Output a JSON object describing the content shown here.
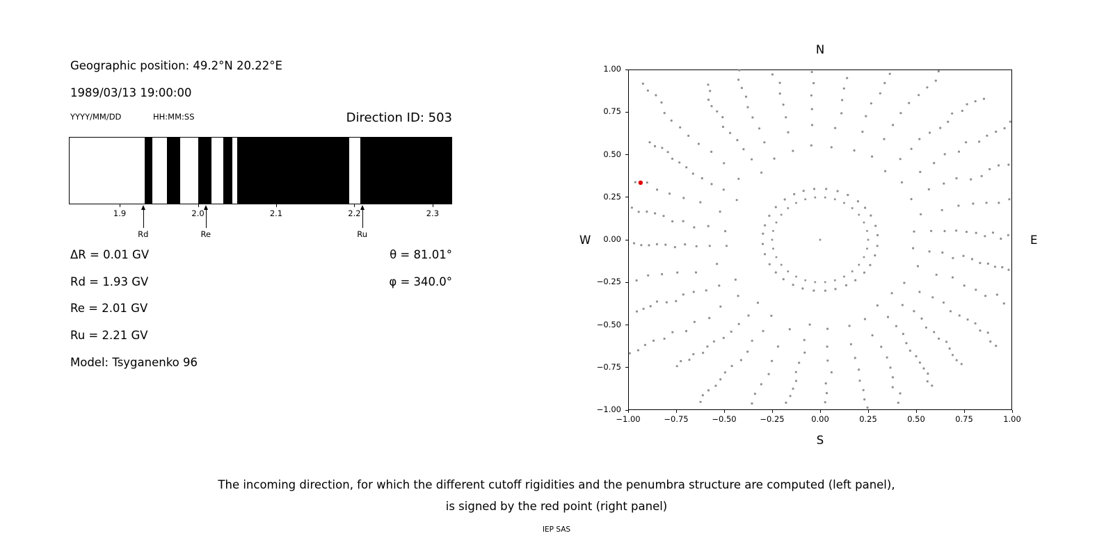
{
  "page": {
    "background": "#ffffff",
    "caption_line1": "The incoming direction, for which the different cutoff rigidities and the penumbra structure are computed (left panel),",
    "caption_line2": "is signed by the red point (right panel)",
    "credit": "IEP SAS"
  },
  "info_panel": {
    "geographic_position": "Geographic position: 49.2°N 20.22°E",
    "datetime": "1989/03/13 19:00:00",
    "date_format_label": "YYYY/MM/DD",
    "time_format_label": "HH:MM:SS",
    "direction_id": "Direction ID: 503",
    "stats": [
      "ΔR = 0.01 GV",
      "Rd = 1.93 GV",
      "Re = 2.01 GV",
      "Ru = 2.21 GV",
      "Model: Tsyganenko 96"
    ],
    "theta": "θ = 81.01°",
    "phi": "φ = 340.0°"
  },
  "chart_data": [
    {
      "id": "penumbra",
      "type": "bar",
      "title": "",
      "description": "Penumbra structure barcode: black bands are allowed rigidity intervals in GV",
      "xlabel": "",
      "xlim": [
        1.835,
        2.325
      ],
      "xtick_values": [
        1.9,
        2.0,
        2.1,
        2.2,
        2.3
      ],
      "xtick_labels": [
        "1.9",
        "2.0",
        "2.1",
        "2.2",
        "2.3"
      ],
      "band_color": "#000000",
      "bands_gv": [
        [
          1.931,
          1.941
        ],
        [
          1.96,
          1.977
        ],
        [
          2.0,
          2.017
        ],
        [
          2.032,
          2.044
        ],
        [
          2.05,
          2.194
        ],
        [
          2.208,
          2.325
        ]
      ],
      "markers": [
        {
          "label": "Rd",
          "value_gv": 1.93
        },
        {
          "label": "Re",
          "value_gv": 2.01
        },
        {
          "label": "Ru",
          "value_gv": 2.21
        }
      ]
    },
    {
      "id": "asymptotic-directions",
      "type": "scatter",
      "title": "",
      "description": "Asymptotic directions map; gray radial spokes of dots, red point marks the incoming direction",
      "xlim": [
        -1,
        1
      ],
      "ylim": [
        -1,
        1
      ],
      "xtick_values": [
        -1,
        -0.75,
        -0.5,
        -0.25,
        0,
        0.25,
        0.5,
        0.75,
        1
      ],
      "xtick_labels": [
        "−1.00",
        "−0.75",
        "−0.50",
        "−0.25",
        "0.00",
        "0.25",
        "0.50",
        "0.75",
        "1.00"
      ],
      "ytick_values": [
        1,
        0.75,
        0.5,
        0.25,
        0,
        -0.25,
        -0.5,
        -0.75,
        -1
      ],
      "ytick_labels": [
        "1.00",
        "0.75",
        "0.50",
        "0.25",
        "0.00",
        "−0.25",
        "−0.50",
        "−0.75",
        "−1.00"
      ],
      "compass": {
        "top": "N",
        "bottom": "S",
        "left": "W",
        "right": "E"
      },
      "grid": false,
      "dot_color": "#8f8f8f",
      "dot_radius": 1.6,
      "red_point": {
        "x": -0.935,
        "y": 0.335,
        "color": "#e00000",
        "radius": 3.2
      },
      "spokes": {
        "count": 32,
        "r_min": 0.3,
        "r_max_base": 1.02,
        "r_max_spread": 0.3,
        "dots_per_spoke": 13,
        "density_exponent": 0.55,
        "curl_deg": 5
      },
      "ring": {
        "radius": 0.25,
        "dot_count": 30
      },
      "center_dot": true
    }
  ]
}
